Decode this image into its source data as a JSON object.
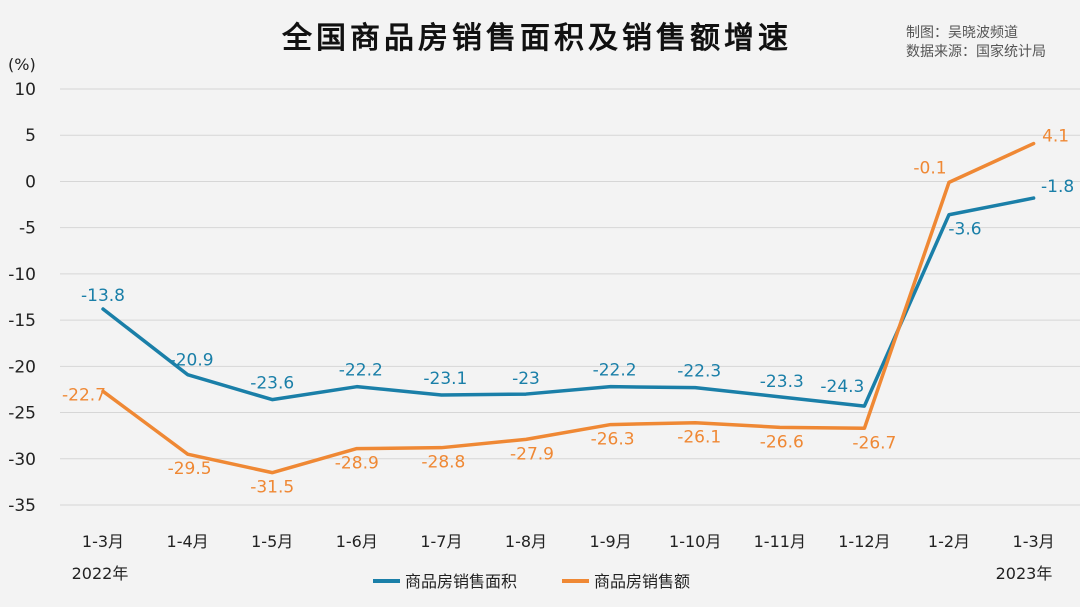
{
  "chart_data": {
    "type": "line",
    "title": "全国商品房销售面积及销售额增速",
    "credits": [
      "制图：吴晓波频道",
      "数据来源：国家统计局"
    ],
    "ylabel": "(%)",
    "ylim": [
      -35,
      10
    ],
    "yticks": [
      10,
      5,
      0,
      -5,
      -10,
      -15,
      -20,
      -25,
      -30,
      -35
    ],
    "grid": true,
    "legend_position": "bottom-center",
    "categories": [
      "1-3月",
      "1-4月",
      "1-5月",
      "1-6月",
      "1-7月",
      "1-8月",
      "1-9月",
      "1-10月",
      "1-11月",
      "1-12月",
      "1-2月",
      "1-3月"
    ],
    "year_labels": {
      "first": "2022年",
      "last": "2023年"
    },
    "series": [
      {
        "name": "商品房销售面积",
        "color": "#1a7fa8",
        "values": [
          -13.8,
          -20.9,
          -23.6,
          -22.2,
          -23.1,
          -23,
          -22.2,
          -22.3,
          -23.3,
          -24.3,
          -3.6,
          -1.8
        ],
        "labels": [
          "-13.8",
          "-20.9",
          "-23.6",
          "-22.2",
          "-23.1",
          "-23",
          "-22.2",
          "-22.3",
          "-23.3",
          "-24.3",
          "-3.6",
          "-1.8"
        ]
      },
      {
        "name": "商品房销售额",
        "color": "#ef8834",
        "values": [
          -22.7,
          -29.5,
          -31.5,
          -28.9,
          -28.8,
          -27.9,
          -26.3,
          -26.1,
          -26.6,
          -26.7,
          -0.1,
          4.1
        ],
        "labels": [
          "-22.7",
          "-29.5",
          "-31.5",
          "-28.9",
          "-28.8",
          "-27.9",
          "-26.3",
          "-26.1",
          "-26.6",
          "-26.7",
          "-0.1",
          "4.1"
        ]
      }
    ]
  }
}
